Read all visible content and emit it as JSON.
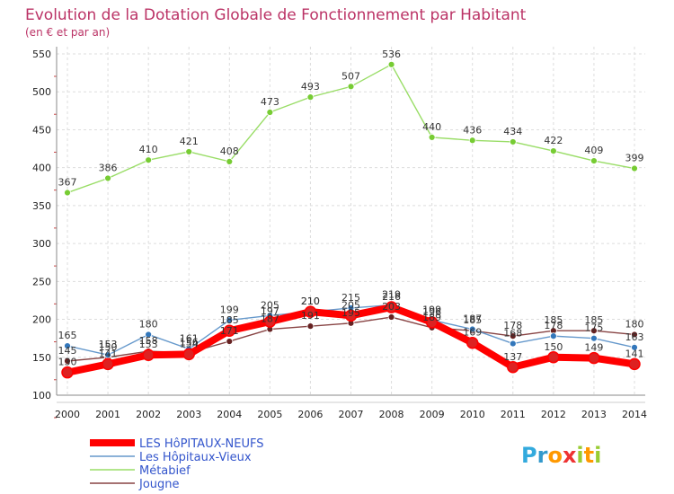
{
  "chart_data": {
    "type": "line",
    "title": "Evolution de la Dotation Globale de Fonctionnement par Habitant",
    "subtitle": "(en € et par an)",
    "x": [
      "2000",
      "2001",
      "2002",
      "2003",
      "2004",
      "2005",
      "2006",
      "2007",
      "2008",
      "2009",
      "2010",
      "2011",
      "2012",
      "2013",
      "2014"
    ],
    "ylim": [
      100,
      550
    ],
    "yticks": [
      100,
      150,
      200,
      250,
      300,
      350,
      400,
      450,
      500,
      550
    ],
    "grid": true,
    "legend_position": "bottom-left",
    "series": [
      {
        "name": "LES HôPITAUX-NEUFS",
        "color": "#ff0000",
        "marker_color": "#dd2222",
        "values": [
          130,
          141,
          153,
          154,
          185,
          197,
          210,
          205,
          216,
          196,
          169,
          137,
          150,
          149,
          141
        ]
      },
      {
        "name": "Les Hôpitaux-Vieux",
        "color": "#6699cc",
        "marker_color": "#3377bb",
        "values": [
          165,
          153,
          180,
          161,
          199,
          205,
          210,
          215,
          219,
          199,
          187,
          168,
          178,
          175,
          163
        ]
      },
      {
        "name": "Métabief",
        "color": "#99dd66",
        "marker_color": "#77cc33",
        "values": [
          367,
          386,
          410,
          421,
          408,
          473,
          493,
          507,
          536,
          440,
          436,
          434,
          422,
          409,
          399
        ]
      },
      {
        "name": "Jougne",
        "color": "#884444",
        "marker_color": "#662222",
        "values": [
          145,
          150,
          158,
          156,
          171,
          187,
          191,
          195,
          203,
          189,
          185,
          178,
          185,
          185,
          180
        ]
      }
    ]
  },
  "brand": {
    "letters": [
      "P",
      "r",
      "o",
      "x",
      "i",
      "t",
      "i"
    ],
    "colors": [
      "#33aadd",
      "#3399cc",
      "#ff9900",
      "#ee3333",
      "#99cc33",
      "#ff9900",
      "#99cc33"
    ]
  }
}
